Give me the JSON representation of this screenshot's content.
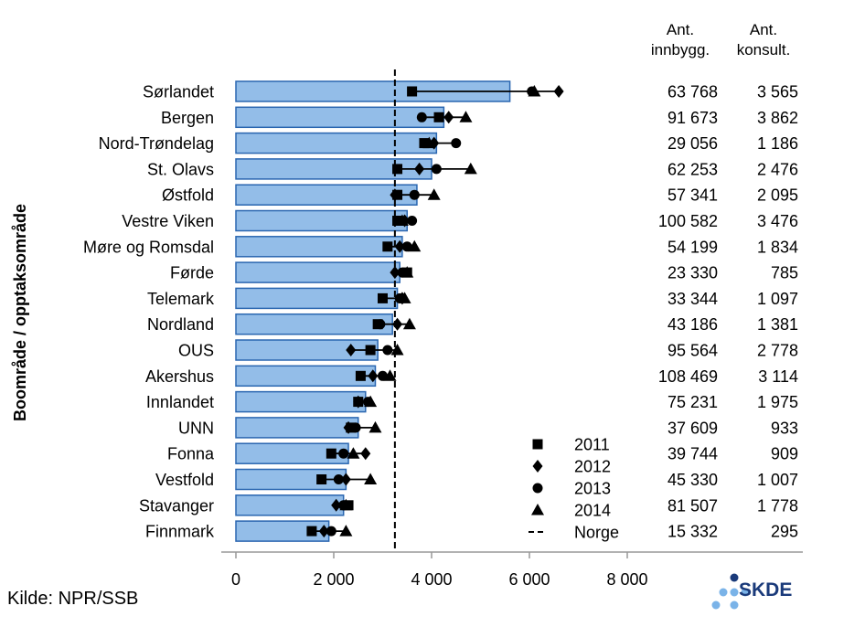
{
  "source": "Kilde: NPR/SSB",
  "logo_text": "SKDE",
  "columns": {
    "innbygg_header": "Ant.\ninnbygg.",
    "konsult_header": "Ant.\nkonsult."
  },
  "colors": {
    "bar_fill": "#93bde8",
    "bar_stroke": "#2a66b0",
    "logo_dark": "#1a3a7a",
    "logo_light": "#7ab3e8"
  },
  "chart_data": {
    "type": "bar",
    "orientation": "horizontal",
    "ylabel": "Boområde / opptaksområde",
    "xlim": [
      0,
      8000
    ],
    "xticks": [
      0,
      2000,
      4000,
      6000,
      8000
    ],
    "xtick_labels": [
      "0",
      "2 000",
      "4 000",
      "6 000",
      "8 000"
    ],
    "reference_line": {
      "name": "Norge",
      "value": 3250
    },
    "legend": {
      "placement": "bottom-right",
      "entries": [
        {
          "label": "2011",
          "marker": "square"
        },
        {
          "label": "2012",
          "marker": "diamond"
        },
        {
          "label": "2013",
          "marker": "circle"
        },
        {
          "label": "2014",
          "marker": "triangle"
        },
        {
          "label": "Norge",
          "marker": "dashed-line"
        }
      ]
    },
    "categories": [
      "Sørlandet",
      "Bergen",
      "Nord-Trøndelag",
      "St. Olavs",
      "Østfold",
      "Vestre Viken",
      "Møre og Romsdal",
      "Førde",
      "Telemark",
      "Nordland",
      "OUS",
      "Akershus",
      "Innlandet",
      "UNN",
      "Fonna",
      "Vestfold",
      "Stavanger",
      "Finnmark"
    ],
    "values": [
      5600,
      4250,
      4100,
      4000,
      3700,
      3500,
      3400,
      3350,
      3300,
      3200,
      2900,
      2850,
      2650,
      2500,
      2300,
      2250,
      2200,
      1900
    ],
    "series": [
      {
        "name": "2011",
        "values": [
          3600,
          4150,
          3850,
          3300,
          3300,
          3300,
          3100,
          3500,
          3000,
          2900,
          2750,
          2550,
          2500,
          2350,
          1950,
          1750,
          2300,
          1550
        ]
      },
      {
        "name": "2012",
        "values": [
          6600,
          4350,
          4050,
          3750,
          3250,
          3450,
          3350,
          3250,
          3400,
          3300,
          2350,
          2800,
          2500,
          2300,
          2650,
          2250,
          2050,
          1800
        ]
      },
      {
        "name": "2013",
        "values": [
          6050,
          3800,
          4500,
          4100,
          3650,
          3600,
          3500,
          3400,
          3350,
          2950,
          3100,
          3000,
          2700,
          2450,
          2200,
          2100,
          2200,
          1950
        ]
      },
      {
        "name": "2014",
        "values": [
          6100,
          4700,
          3950,
          4800,
          4050,
          3400,
          3650,
          3500,
          3450,
          3550,
          3300,
          3150,
          2750,
          2850,
          2400,
          2750,
          2250,
          2250
        ]
      }
    ],
    "ant_innbygg": [
      "63 768",
      "91 673",
      "29 056",
      "62 253",
      "57 341",
      "100 582",
      "54 199",
      "23 330",
      "33 344",
      "43 186",
      "95 564",
      "108 469",
      "75 231",
      "37 609",
      "39 744",
      "45 330",
      "81 507",
      "15 332"
    ],
    "ant_konsult": [
      "3 565",
      "3 862",
      "1 186",
      "2 476",
      "2 095",
      "3 476",
      "1 834",
      "785",
      "1 097",
      "1 381",
      "2 778",
      "3 114",
      "1 975",
      "933",
      "909",
      "1 007",
      "1 778",
      "295"
    ]
  }
}
